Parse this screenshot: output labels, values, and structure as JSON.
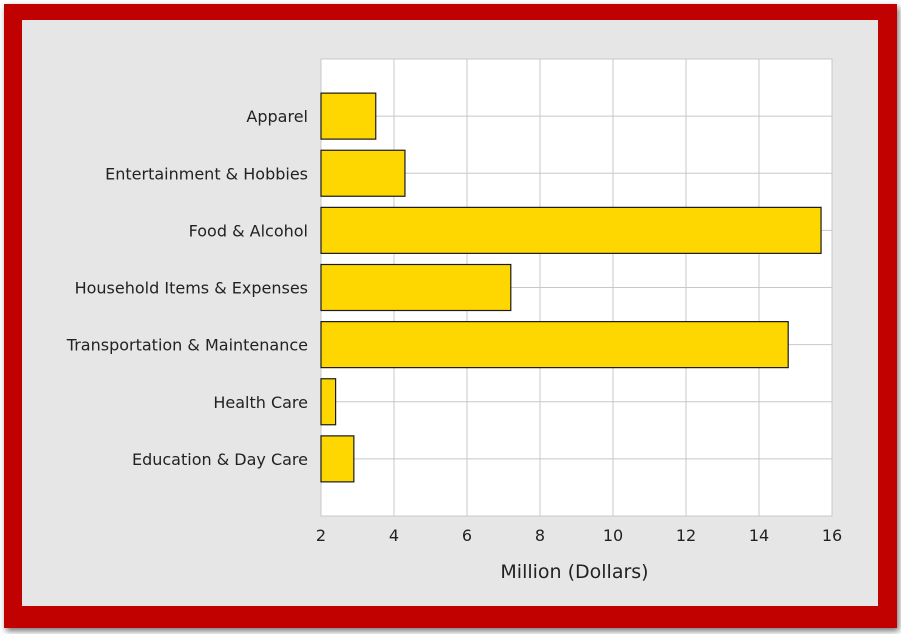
{
  "chart_data": {
    "type": "bar",
    "orientation": "horizontal",
    "categories": [
      "Apparel",
      "Entertainment & Hobbies",
      "Food & Alcohol",
      "Household Items & Expenses",
      "Transportation & Maintenance",
      "Health Care",
      "Education & Day Care"
    ],
    "values": [
      3.5,
      4.3,
      15.7,
      7.2,
      14.8,
      2.4,
      2.9
    ],
    "xlabel": "Million (Dollars)",
    "ylabel": "",
    "xlim": [
      2,
      16
    ],
    "xticks": [
      "2",
      "4",
      "6",
      "8",
      "10",
      "12",
      "14",
      "16"
    ],
    "grid": true,
    "colors": {
      "bar_fill": "#ffd700",
      "bar_stroke": "#1a1a1a",
      "frame": "#c10000",
      "panel": "#e6e6e6",
      "plot_bg": "#ffffff",
      "grid": "#c8c8c8"
    }
  }
}
